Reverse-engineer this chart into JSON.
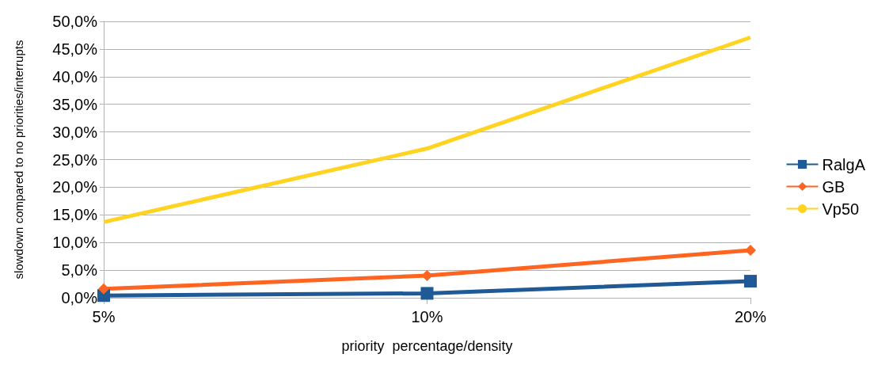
{
  "chart_data": {
    "type": "line",
    "xlabel": "priority  percentage/density",
    "ylabel": "slowdown compared to no priorities/interrupts",
    "categories": [
      "5%",
      "10%",
      "20%"
    ],
    "series": [
      {
        "name": "RalgA",
        "color": "#1f5a96",
        "marker": "square",
        "values": [
          0.4,
          0.8,
          3.0
        ]
      },
      {
        "name": "GB",
        "color": "#ff6420",
        "marker": "diamond",
        "values": [
          1.6,
          4.0,
          8.6
        ]
      },
      {
        "name": "Vp50",
        "color": "#ffd320",
        "marker": "none",
        "values": [
          13.7,
          27.0,
          47.1
        ]
      }
    ],
    "ylim": [
      0,
      50
    ],
    "yticks": [
      {
        "value": 0,
        "label": "0,0%"
      },
      {
        "value": 5,
        "label": "5,0%"
      },
      {
        "value": 10,
        "label": "10,0%"
      },
      {
        "value": 15,
        "label": "15,0%"
      },
      {
        "value": 20,
        "label": "20,0%"
      },
      {
        "value": 25,
        "label": "25,0%"
      },
      {
        "value": 30,
        "label": "30,0%"
      },
      {
        "value": 35,
        "label": "35,0%"
      },
      {
        "value": 40,
        "label": "40,0%"
      },
      {
        "value": 45,
        "label": "45,0%"
      },
      {
        "value": 50,
        "label": "50,0%"
      }
    ],
    "grid": "y",
    "legend": "right"
  }
}
